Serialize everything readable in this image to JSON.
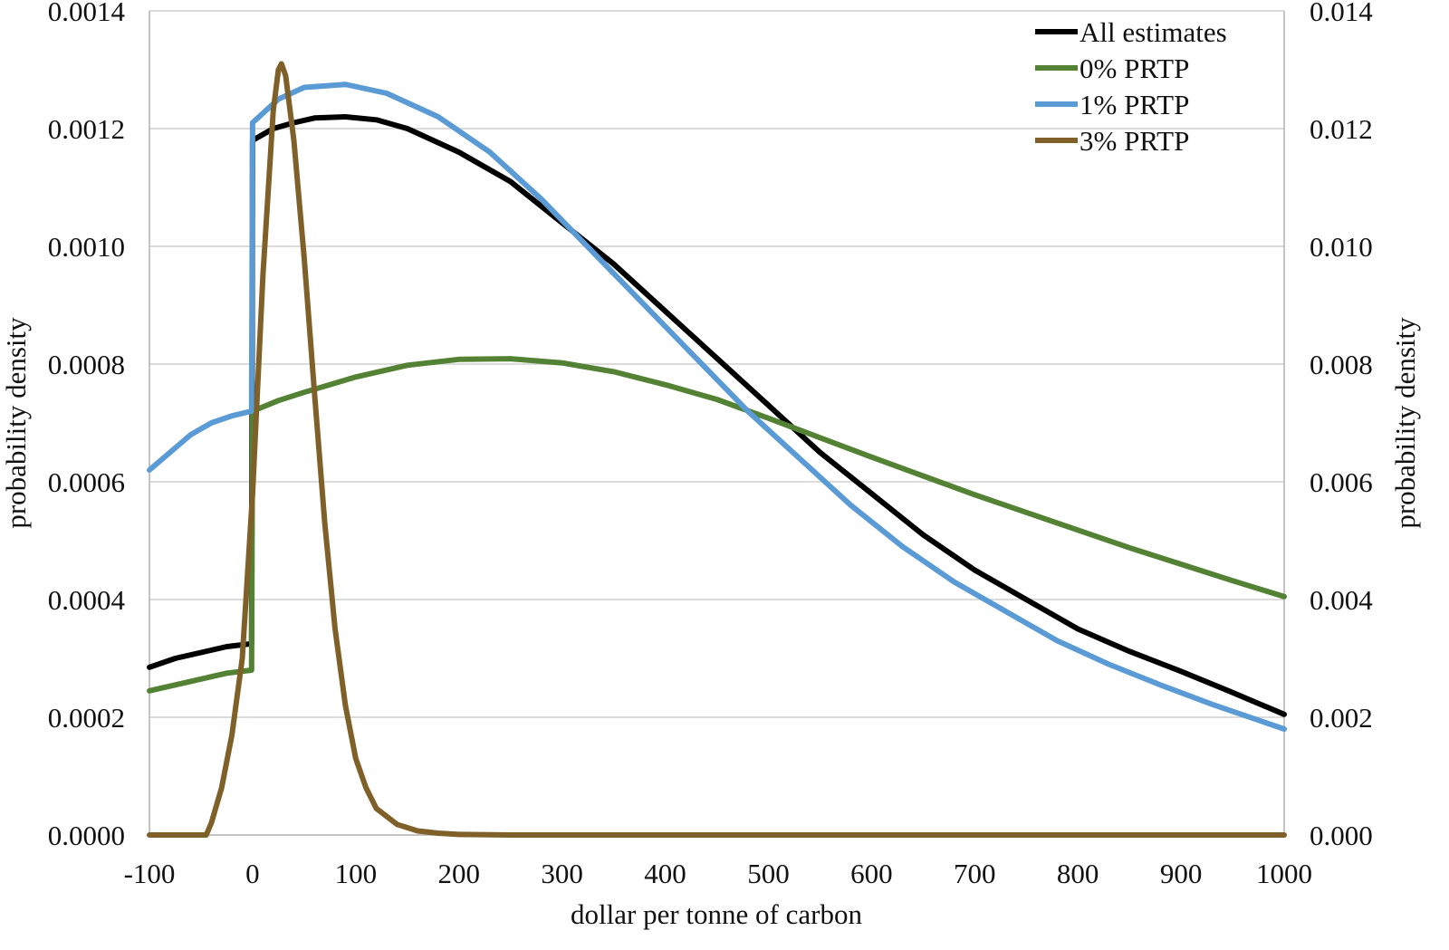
{
  "chart_data": {
    "type": "line",
    "xlabel": "dollar per tonne of carbon",
    "ylabel": "probability density",
    "y2label": "probability density",
    "xlim": [
      -100,
      1000
    ],
    "ylim": [
      0,
      0.0014
    ],
    "y2lim": [
      0,
      0.014
    ],
    "x_ticks": [
      "-100",
      "0",
      "100",
      "200",
      "300",
      "400",
      "500",
      "600",
      "700",
      "800",
      "900",
      "1000"
    ],
    "y_ticks": [
      "0.0000",
      "0.0002",
      "0.0004",
      "0.0006",
      "0.0008",
      "0.0010",
      "0.0012",
      "0.0014"
    ],
    "y2_ticks": [
      "0.000",
      "0.002",
      "0.004",
      "0.006",
      "0.008",
      "0.010",
      "0.012",
      "0.014"
    ],
    "grid": true,
    "legend_position": "top-right",
    "series": [
      {
        "name": "All estimates",
        "color": "#000000",
        "axis": "left",
        "x": [
          -100,
          -75,
          -50,
          -25,
          -1,
          0,
          20,
          40,
          60,
          90,
          120,
          150,
          200,
          250,
          300,
          350,
          400,
          450,
          500,
          550,
          600,
          650,
          700,
          750,
          800,
          850,
          900,
          950,
          1000
        ],
        "y": [
          0.000285,
          0.0003,
          0.00031,
          0.00032,
          0.000325,
          0.00118,
          0.0012,
          0.00121,
          0.001218,
          0.00122,
          0.001215,
          0.0012,
          0.00116,
          0.00111,
          0.00104,
          0.00097,
          0.00089,
          0.00081,
          0.00073,
          0.00065,
          0.00058,
          0.00051,
          0.00045,
          0.0004,
          0.00035,
          0.000312,
          0.000278,
          0.000242,
          0.000205
        ]
      },
      {
        "name": "0% PRTP",
        "color": "#548235",
        "axis": "left",
        "x": [
          -100,
          -75,
          -50,
          -25,
          -1,
          0,
          25,
          50,
          100,
          150,
          200,
          250,
          300,
          350,
          400,
          450,
          500,
          550,
          600,
          650,
          700,
          750,
          800,
          850,
          900,
          950,
          1000
        ],
        "y": [
          0.000245,
          0.000255,
          0.000265,
          0.000275,
          0.00028,
          0.00072,
          0.000738,
          0.000752,
          0.000778,
          0.000798,
          0.000808,
          0.000809,
          0.000802,
          0.000787,
          0.000765,
          0.00074,
          0.000708,
          0.000675,
          0.000642,
          0.00061,
          0.000578,
          0.000548,
          0.000518,
          0.000488,
          0.00046,
          0.000432,
          0.000405
        ]
      },
      {
        "name": "1% PRTP",
        "color": "#5b9bd5",
        "axis": "left",
        "x": [
          -100,
          -80,
          -60,
          -40,
          -20,
          -1,
          0,
          25,
          50,
          90,
          130,
          180,
          230,
          280,
          330,
          380,
          430,
          480,
          530,
          580,
          630,
          680,
          730,
          780,
          830,
          880,
          930,
          980,
          1000
        ],
        "y": [
          0.00062,
          0.00065,
          0.00068,
          0.0007,
          0.000712,
          0.00072,
          0.00121,
          0.00125,
          0.00127,
          0.001275,
          0.00126,
          0.00122,
          0.00116,
          0.00108,
          0.00099,
          0.0009,
          0.00081,
          0.00072,
          0.00064,
          0.00056,
          0.00049,
          0.00043,
          0.00038,
          0.00033,
          0.00029,
          0.000255,
          0.000222,
          0.000192,
          0.00018
        ]
      },
      {
        "name": "3% PRTP",
        "color": "#7f6029",
        "axis": "right",
        "x": [
          -100,
          -60,
          -45,
          -40,
          -30,
          -20,
          -10,
          0,
          10,
          20,
          25,
          28,
          32,
          40,
          50,
          60,
          70,
          80,
          90,
          100,
          110,
          120,
          140,
          160,
          180,
          200,
          250,
          300,
          1000
        ],
        "y": [
          0.0,
          0.0,
          0.0,
          0.0002,
          0.0008,
          0.0017,
          0.003,
          0.0058,
          0.0095,
          0.0123,
          0.013,
          0.0131,
          0.0129,
          0.0118,
          0.0098,
          0.0075,
          0.0053,
          0.0035,
          0.0022,
          0.0013,
          0.0008,
          0.00045,
          0.00018,
          7e-05,
          3e-05,
          1e-05,
          0.0,
          0.0,
          0.0
        ]
      }
    ]
  }
}
